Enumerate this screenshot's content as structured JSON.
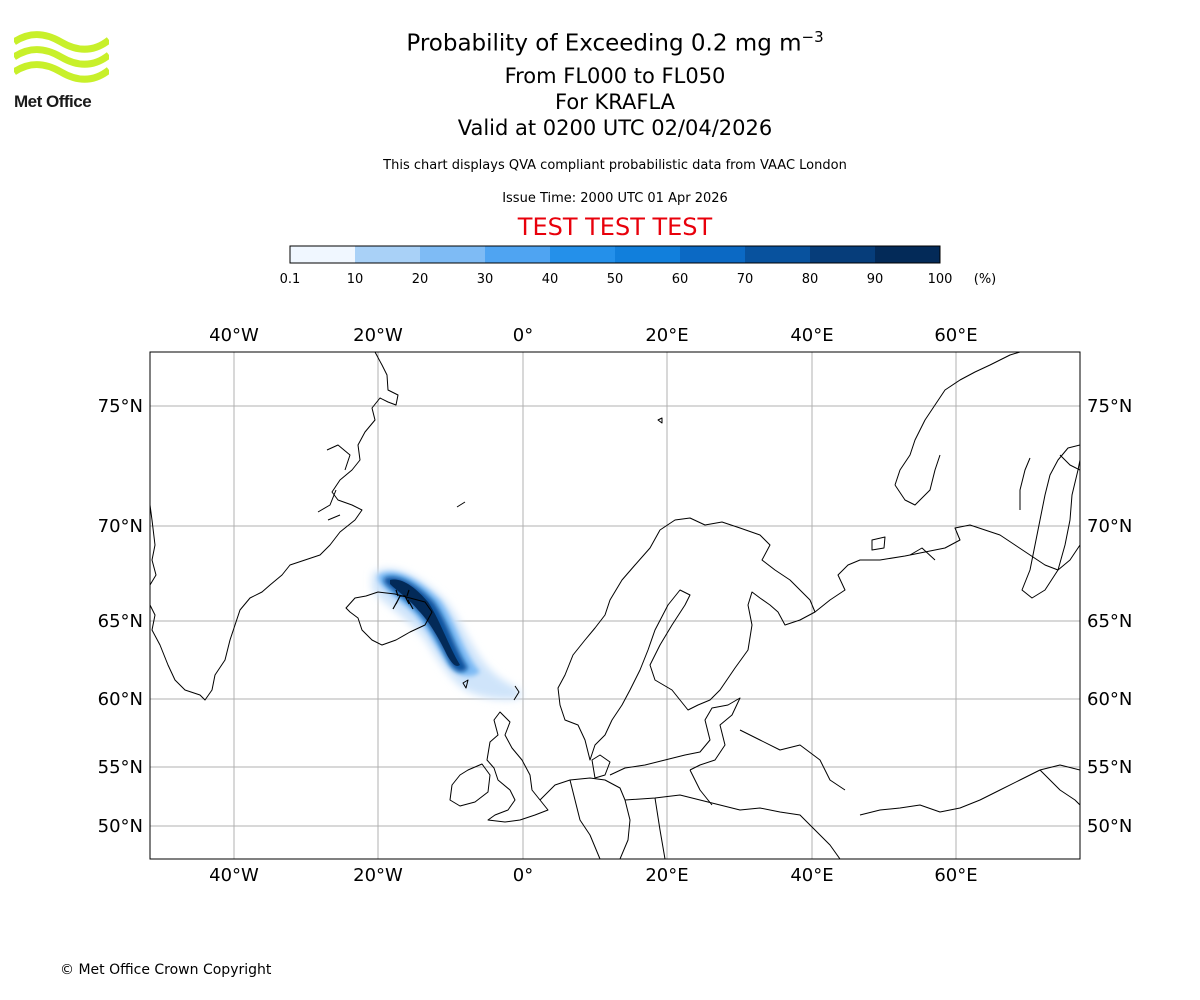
{
  "branding": {
    "logo_text": "Met Office",
    "logo_color": "#c8f02a",
    "copyright": "© Met Office Crown Copyright"
  },
  "header": {
    "title_main": "Probability of Exceeding 0.2 mg m",
    "title_exp": "−3",
    "flight_levels": "From FL000 to FL050",
    "volcano": "For KRAFLA",
    "valid_time": "Valid at 0200 UTC 02/04/2026",
    "disclaimer": "This chart displays QVA compliant probabilistic data from VAAC London",
    "issue_time": "Issue Time: 2000 UTC 01 Apr 2026",
    "test_banner": "TEST TEST TEST",
    "test_color": "#e8000b"
  },
  "colorbar": {
    "labels": [
      "0.1",
      "10",
      "20",
      "30",
      "40",
      "50",
      "60",
      "70",
      "80",
      "90",
      "100"
    ],
    "unit": "(%)",
    "colors": [
      "#f0f7ff",
      "#cfe4fa",
      "#a9d1f7",
      "#7ebbf5",
      "#4fa4f2",
      "#2490ea",
      "#117fdc",
      "#0b69c4",
      "#08529e",
      "#063d7a",
      "#032a58"
    ]
  },
  "map": {
    "lon_labels": [
      "40°W",
      "20°W",
      "0°",
      "20°E",
      "40°E",
      "60°E"
    ],
    "lat_labels": [
      "75°N",
      "70°N",
      "65°N",
      "60°N",
      "55°N",
      "50°N"
    ],
    "volcano_marker": "Krafla volcano"
  }
}
